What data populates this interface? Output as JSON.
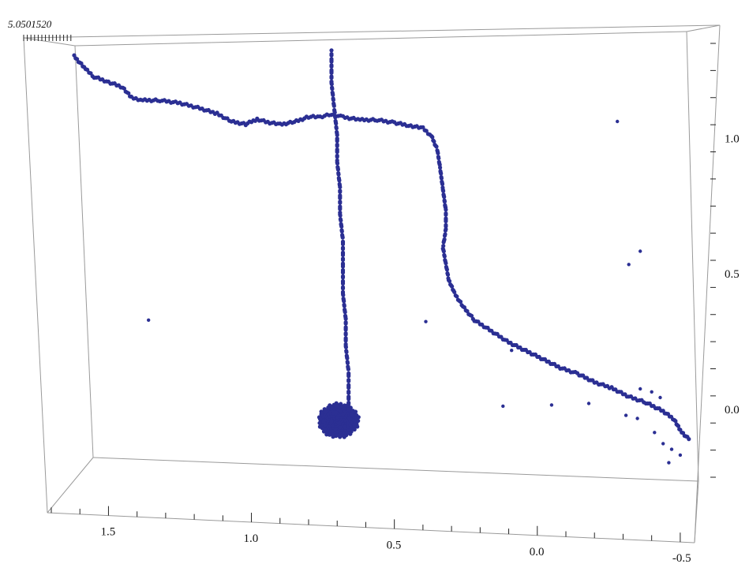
{
  "chart_data": {
    "type": "scatter",
    "projection": "3d-box",
    "title": "",
    "xlabel": "",
    "ylabel": "",
    "color": "#2b2f93",
    "frame_color": "#9a9a9a",
    "x_axis": {
      "lim": [
        -0.55,
        1.7
      ],
      "ticks": [
        1.5,
        1.0,
        0.5,
        0.0,
        -0.5
      ],
      "tick_labels": [
        "1.5",
        "1.0",
        "0.5",
        "0.0",
        "-0.5"
      ]
    },
    "y_axis": {
      "lim": [
        -0.25,
        1.35
      ],
      "ticks": [
        1.0,
        0.5,
        0.0
      ],
      "tick_labels": [
        "1.0",
        "0.5",
        "0.0"
      ]
    },
    "depth_tick_text": "5.0501520",
    "series": [
      {
        "mode": "dense-curve",
        "points": [
          [
            1.62,
            1.3
          ],
          [
            1.58,
            1.25
          ],
          [
            1.55,
            1.22
          ],
          [
            1.5,
            1.2
          ],
          [
            1.45,
            1.18
          ],
          [
            1.42,
            1.14
          ],
          [
            1.38,
            1.13
          ],
          [
            1.32,
            1.13
          ],
          [
            1.25,
            1.12
          ],
          [
            1.18,
            1.1
          ],
          [
            1.12,
            1.08
          ],
          [
            1.07,
            1.05
          ],
          [
            1.02,
            1.04
          ],
          [
            0.98,
            1.06
          ],
          [
            0.95,
            1.05
          ],
          [
            0.9,
            1.04
          ],
          [
            0.85,
            1.05
          ],
          [
            0.8,
            1.07
          ],
          [
            0.76,
            1.07
          ],
          [
            0.72,
            1.08
          ],
          [
            0.68,
            1.07
          ],
          [
            0.62,
            1.06
          ],
          [
            0.56,
            1.06
          ],
          [
            0.5,
            1.05
          ],
          [
            0.45,
            1.04
          ],
          [
            0.4,
            1.03
          ],
          [
            0.37,
            1.0
          ],
          [
            0.35,
            0.95
          ],
          [
            0.34,
            0.88
          ],
          [
            0.33,
            0.8
          ],
          [
            0.32,
            0.72
          ],
          [
            0.32,
            0.65
          ],
          [
            0.33,
            0.58
          ],
          [
            0.32,
            0.52
          ],
          [
            0.31,
            0.46
          ],
          [
            0.29,
            0.41
          ],
          [
            0.26,
            0.36
          ],
          [
            0.22,
            0.31
          ],
          [
            0.16,
            0.27
          ],
          [
            0.1,
            0.23
          ],
          [
            0.04,
            0.2
          ],
          [
            -0.02,
            0.17
          ],
          [
            -0.08,
            0.14
          ],
          [
            -0.14,
            0.12
          ],
          [
            -0.2,
            0.09
          ],
          [
            -0.26,
            0.07
          ],
          [
            -0.32,
            0.04
          ],
          [
            -0.38,
            0.02
          ],
          [
            -0.44,
            -0.01
          ],
          [
            -0.48,
            -0.04
          ],
          [
            -0.5,
            -0.08
          ],
          [
            -0.53,
            -0.11
          ]
        ]
      },
      {
        "mode": "dense-curve",
        "points": [
          [
            0.72,
            1.32
          ],
          [
            0.72,
            1.2
          ],
          [
            0.71,
            1.1
          ],
          [
            0.7,
            1.0
          ],
          [
            0.7,
            0.9
          ],
          [
            0.69,
            0.8
          ],
          [
            0.69,
            0.7
          ],
          [
            0.68,
            0.6
          ],
          [
            0.68,
            0.5
          ],
          [
            0.68,
            0.4
          ],
          [
            0.67,
            0.3
          ],
          [
            0.67,
            0.2
          ],
          [
            0.66,
            0.1
          ],
          [
            0.66,
            0.02
          ],
          [
            0.66,
            -0.03
          ]
        ]
      },
      {
        "mode": "blob",
        "points": [
          [
            0.66,
            -0.04
          ],
          [
            0.7,
            -0.03
          ],
          [
            0.74,
            -0.05
          ],
          [
            0.76,
            -0.08
          ],
          [
            0.74,
            -0.12
          ],
          [
            0.7,
            -0.14
          ],
          [
            0.66,
            -0.13
          ],
          [
            0.64,
            -0.1
          ],
          [
            0.65,
            -0.06
          ],
          [
            0.68,
            -0.06
          ],
          [
            0.72,
            -0.09
          ],
          [
            0.69,
            -0.11
          ]
        ]
      },
      {
        "mode": "scatter",
        "points": [
          [
            1.36,
            0.28
          ],
          [
            0.39,
            0.3
          ],
          [
            0.09,
            0.2
          ],
          [
            -0.28,
            1.06
          ],
          [
            -0.36,
            0.58
          ],
          [
            -0.32,
            0.53
          ],
          [
            -0.31,
            -0.03
          ],
          [
            -0.35,
            -0.04
          ],
          [
            -0.41,
            -0.09
          ],
          [
            -0.44,
            -0.13
          ],
          [
            -0.47,
            -0.15
          ],
          [
            -0.5,
            -0.17
          ],
          [
            -0.46,
            -0.2
          ],
          [
            -0.4,
            0.06
          ],
          [
            -0.36,
            0.07
          ],
          [
            -0.43,
            0.04
          ],
          [
            -0.05,
            0.0
          ],
          [
            0.12,
            -0.01
          ],
          [
            -0.18,
            0.01
          ]
        ]
      }
    ]
  }
}
